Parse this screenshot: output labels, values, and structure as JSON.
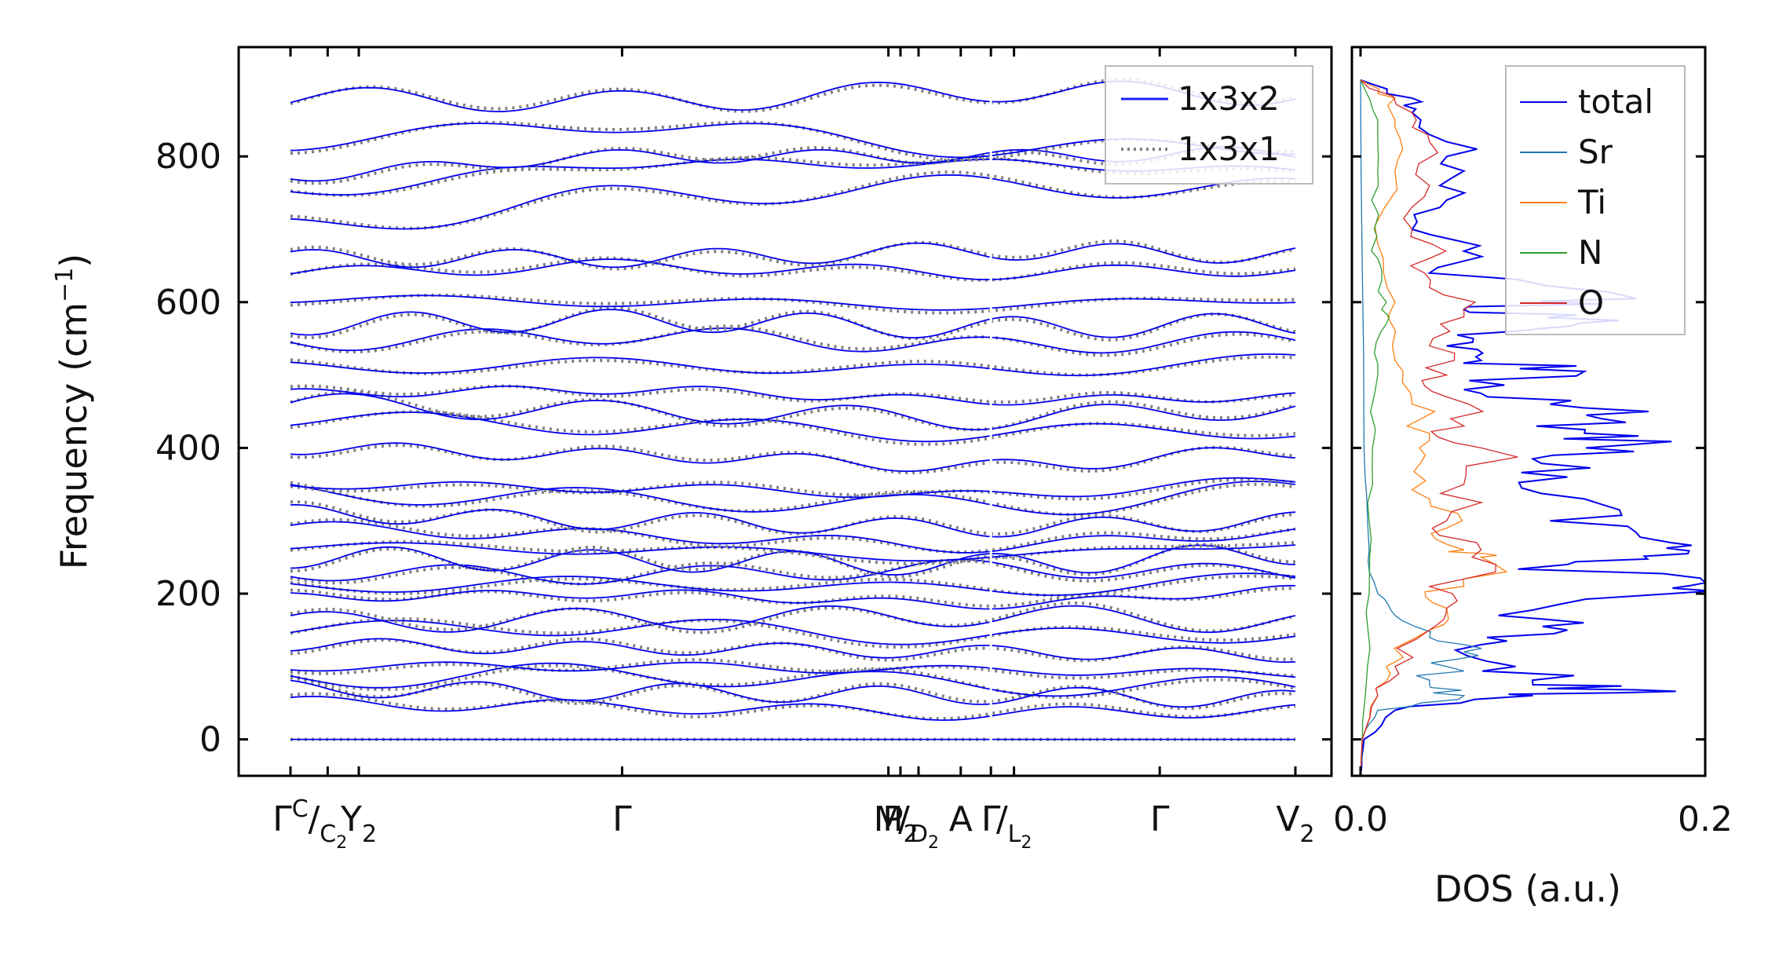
{
  "chart_data": [
    {
      "type": "line",
      "title": "",
      "xlabel": "",
      "ylabel": "Frequency (cm",
      "ylabel_sup": "−1",
      "ylabel_close": ")",
      "ylim": [
        -50,
        950
      ],
      "yticks": [
        0,
        200,
        400,
        600,
        800
      ],
      "x_path_points": [
        {
          "main": "Γ",
          "note": "C",
          "x": 0.0
        },
        {
          "main": "/",
          "sub": "C",
          "sub2": "2",
          "x": 0.037
        },
        {
          "main": "Y",
          "sub": "2",
          "x": 0.068
        },
        {
          "main": "Γ",
          "x": 0.33
        },
        {
          "main": "M",
          "x": 0.595
        },
        {
          "main": "P",
          "sub": "2",
          "x": 0.607
        },
        {
          "main": "/",
          "sub": "D",
          "sub2": "2",
          "x": 0.625
        },
        {
          "main": "A",
          "x": 0.667
        },
        {
          "main": "Γ",
          "x": 0.697
        },
        {
          "main": "/",
          "sub": "L",
          "sub2": "2",
          "x": 0.72
        },
        {
          "main": "Γ",
          "x": 0.865
        },
        {
          "main": "V",
          "sub": "2",
          "x": 1.0
        }
      ],
      "legend": {
        "placement": "top-right",
        "entries": [
          {
            "label": "1x3x2",
            "style": "solid",
            "color": "#1f1fff"
          },
          {
            "label": "1x3x1",
            "style": "dotted",
            "color": "#808080"
          }
        ]
      },
      "series": [
        {
          "style": "solid",
          "color": "#0000ee",
          "name": "1x3x2",
          "y_at_path_points_sample": [
            [
              0,
              0,
              0,
              0
            ],
            [
              50,
              45,
              35,
              40
            ],
            [
              70,
              65,
              60,
              55
            ],
            [
              85,
              90,
              75,
              70
            ],
            [
              100,
              100,
              95,
              90
            ],
            [
              130,
              125,
              120,
              115
            ],
            [
              150,
              155,
              140,
              145
            ],
            [
              160,
              165,
              170,
              160
            ],
            [
              195,
              200,
              185,
              205
            ],
            [
              210,
              215,
              205,
              220
            ],
            [
              230,
              225,
              235,
              228
            ],
            [
              250,
              245,
              240,
              255
            ],
            [
              265,
              260,
              250,
              270
            ],
            [
              290,
              280,
              265,
              285
            ],
            [
              310,
              300,
              290,
              300
            ],
            [
              340,
              330,
              320,
              340
            ],
            [
              350,
              345,
              335,
              355
            ],
            [
              400,
              390,
              375,
              395
            ],
            [
              440,
              430,
              420,
              425
            ],
            [
              460,
              450,
              440,
              455
            ],
            [
              475,
              480,
              465,
              470
            ],
            [
              510,
              515,
              505,
              520
            ],
            [
              545,
              555,
              540,
              548
            ],
            [
              570,
              575,
              565,
              570
            ],
            [
              605,
              600,
              595,
              605
            ],
            [
              640,
              650,
              640,
              645
            ],
            [
              660,
              660,
              670,
              665
            ],
            [
              700,
              745,
              760,
              755
            ],
            [
              750,
              790,
              790,
              780
            ],
            [
              775,
              800,
              800,
              805
            ],
            [
              820,
              845,
              810,
              815
            ],
            [
              880,
              875,
              890,
              885
            ]
          ]
        },
        {
          "style": "dotted",
          "color": "#808080",
          "name": "1x3x1"
        }
      ]
    },
    {
      "type": "line",
      "xlabel": "DOS (a.u.)",
      "ylabel": "",
      "xlim": [
        -0.005,
        0.2
      ],
      "xticks": [
        0.0,
        0.2
      ],
      "xtick_labels": [
        "0.0",
        "0.2"
      ],
      "ylim": [
        -50,
        950
      ],
      "legend": {
        "placement": "top-right",
        "entries": [
          {
            "label": "total",
            "color": "#0000ee"
          },
          {
            "label": "Sr",
            "color": "#1f77b4"
          },
          {
            "label": "Ti",
            "color": "#ff7f0e"
          },
          {
            "label": "N",
            "color": "#2ca02c"
          },
          {
            "label": "O",
            "color": "#d62728"
          }
        ]
      },
      "series": [
        {
          "name": "total",
          "color": "#0000ee",
          "points": [
            [
              -50,
              0.0
            ],
            [
              0,
              0.002
            ],
            [
              40,
              0.02
            ],
            [
              60,
              0.1
            ],
            [
              68,
              0.16
            ],
            [
              75,
              0.1
            ],
            [
              100,
              0.09
            ],
            [
              130,
              0.07
            ],
            [
              150,
              0.12
            ],
            [
              170,
              0.08
            ],
            [
              200,
              0.18
            ],
            [
              215,
              0.2
            ],
            [
              240,
              0.12
            ],
            [
              255,
              0.19
            ],
            [
              270,
              0.18
            ],
            [
              300,
              0.11
            ],
            [
              330,
              0.13
            ],
            [
              360,
              0.12
            ],
            [
              385,
              0.1
            ],
            [
              405,
              0.16
            ],
            [
              420,
              0.13
            ],
            [
              440,
              0.14
            ],
            [
              460,
              0.11
            ],
            [
              480,
              0.06
            ],
            [
              505,
              0.13
            ],
            [
              520,
              0.07
            ],
            [
              540,
              0.05
            ],
            [
              560,
              0.09
            ],
            [
              575,
              0.15
            ],
            [
              590,
              0.06
            ],
            [
              605,
              0.16
            ],
            [
              640,
              0.04
            ],
            [
              670,
              0.06
            ],
            [
              700,
              0.03
            ],
            [
              740,
              0.05
            ],
            [
              780,
              0.06
            ],
            [
              820,
              0.05
            ],
            [
              860,
              0.03
            ],
            [
              880,
              0.03
            ],
            [
              905,
              0.0
            ]
          ]
        },
        {
          "name": "Sr",
          "color": "#1f77b4",
          "points": [
            [
              -50,
              0.0
            ],
            [
              0,
              0.001
            ],
            [
              40,
              0.01
            ],
            [
              60,
              0.06
            ],
            [
              75,
              0.04
            ],
            [
              100,
              0.05
            ],
            [
              120,
              0.06
            ],
            [
              140,
              0.04
            ],
            [
              170,
              0.02
            ],
            [
              200,
              0.01
            ],
            [
              260,
              0.005
            ],
            [
              400,
              0.002
            ],
            [
              905,
              0.0
            ]
          ]
        },
        {
          "name": "Ti",
          "color": "#ff7f0e",
          "points": [
            [
              -50,
              0.0
            ],
            [
              0,
              0.001
            ],
            [
              60,
              0.01
            ],
            [
              100,
              0.015
            ],
            [
              150,
              0.04
            ],
            [
              180,
              0.05
            ],
            [
              210,
              0.06
            ],
            [
              250,
              0.07
            ],
            [
              260,
              0.06
            ],
            [
              290,
              0.05
            ],
            [
              330,
              0.04
            ],
            [
              380,
              0.035
            ],
            [
              420,
              0.04
            ],
            [
              460,
              0.03
            ],
            [
              520,
              0.02
            ],
            [
              600,
              0.02
            ],
            [
              680,
              0.01
            ],
            [
              780,
              0.02
            ],
            [
              840,
              0.02
            ],
            [
              880,
              0.02
            ],
            [
              905,
              0.0
            ]
          ]
        },
        {
          "name": "N",
          "color": "#2ca02c",
          "points": [
            [
              -50,
              0.0
            ],
            [
              0,
              0.001
            ],
            [
              100,
              0.004
            ],
            [
              200,
              0.005
            ],
            [
              300,
              0.005
            ],
            [
              400,
              0.007
            ],
            [
              500,
              0.01
            ],
            [
              560,
              0.012
            ],
            [
              600,
              0.015
            ],
            [
              660,
              0.01
            ],
            [
              700,
              0.008
            ],
            [
              780,
              0.01
            ],
            [
              850,
              0.01
            ],
            [
              905,
              0.0
            ]
          ]
        },
        {
          "name": "O",
          "color": "#d62728",
          "points": [
            [
              -50,
              0.0
            ],
            [
              0,
              0.001
            ],
            [
              60,
              0.01
            ],
            [
              100,
              0.02
            ],
            [
              150,
              0.04
            ],
            [
              180,
              0.05
            ],
            [
              220,
              0.06
            ],
            [
              260,
              0.07
            ],
            [
              300,
              0.05
            ],
            [
              350,
              0.06
            ],
            [
              400,
              0.07
            ],
            [
              430,
              0.06
            ],
            [
              470,
              0.05
            ],
            [
              500,
              0.05
            ],
            [
              540,
              0.04
            ],
            [
              580,
              0.06
            ],
            [
              620,
              0.04
            ],
            [
              660,
              0.04
            ],
            [
              700,
              0.03
            ],
            [
              760,
              0.04
            ],
            [
              820,
              0.04
            ],
            [
              860,
              0.03
            ],
            [
              905,
              0.0
            ]
          ]
        }
      ]
    }
  ]
}
